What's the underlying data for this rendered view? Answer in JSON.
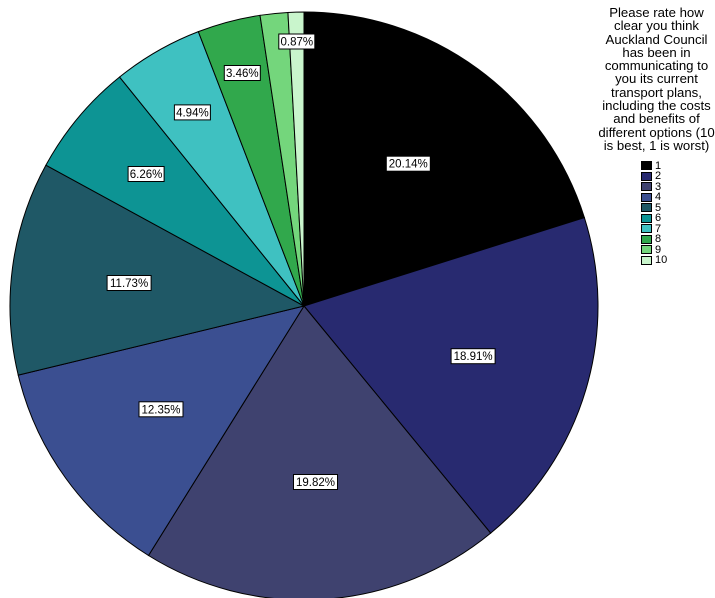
{
  "chart_data": {
    "type": "pie",
    "title": "",
    "legend_title": "Please rate how clear you think Auckland Council has been in communicating to you its current transport plans, including the costs and benefits of different options (10 is best, 1 is worst)",
    "legend_placement": "right",
    "slices": [
      {
        "category": "1",
        "value": 20.14,
        "label": "20.14%",
        "color": "#000000"
      },
      {
        "category": "2",
        "value": 18.91,
        "label": "18.91%",
        "color": "#282a70"
      },
      {
        "category": "3",
        "value": 19.82,
        "label": "19.82%",
        "color": "#3f426f"
      },
      {
        "category": "4",
        "value": 12.35,
        "label": "12.35%",
        "color": "#3b4f91"
      },
      {
        "category": "5",
        "value": 11.73,
        "label": "11.73%",
        "color": "#1f5866"
      },
      {
        "category": "6",
        "value": 6.26,
        "label": "6.26%",
        "color": "#0d9494"
      },
      {
        "category": "7",
        "value": 4.94,
        "label": "4.94%",
        "color": "#3fc1c1"
      },
      {
        "category": "8",
        "value": 3.46,
        "label": "3.46%",
        "color": "#31a84c"
      },
      {
        "category": "9",
        "value": 1.52,
        "label": "",
        "color": "#74d67c"
      },
      {
        "category": "10",
        "value": 0.87,
        "label": "0.87%",
        "color": "#c9f5cc"
      }
    ]
  }
}
